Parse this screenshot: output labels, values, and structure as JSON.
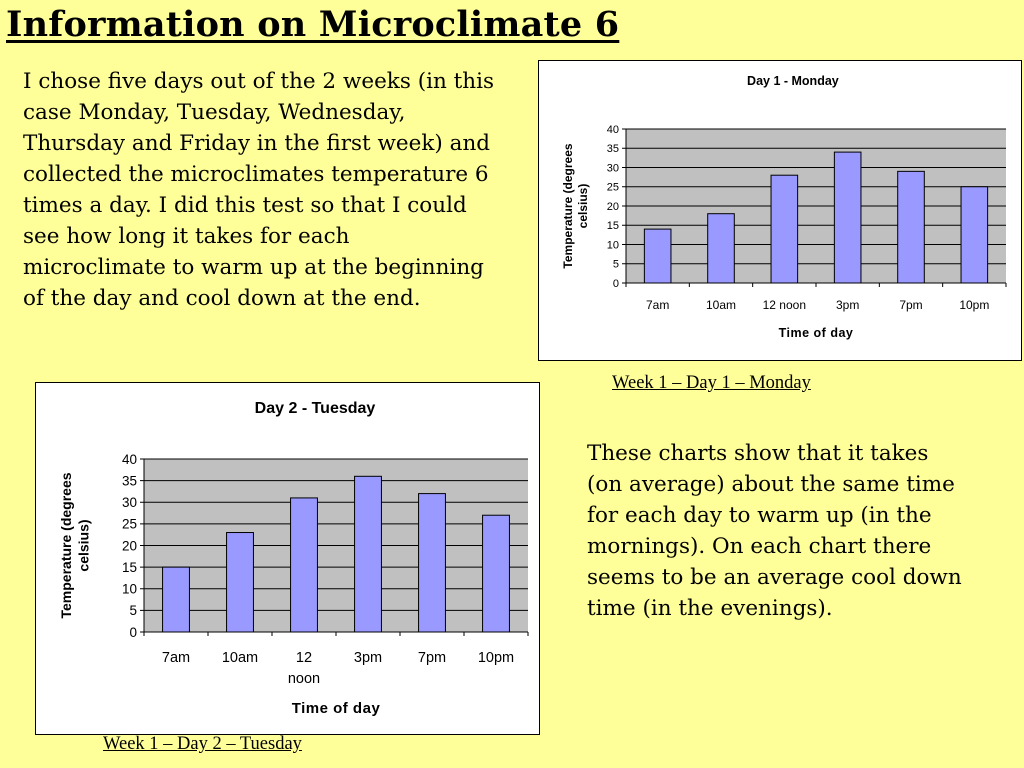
{
  "slide": {
    "title": "Information on Microclimate 6",
    "intro": "I chose five days out of the 2 weeks (in this case Monday, Tuesday, Wednesday, Thursday and Friday in the first week) and collected the microclimates temperature 6 times a day. I did this test so that I could see how long it takes for each microclimate to warm up at the beginning of the day and cool down at the end.",
    "summary": "These charts show that it takes (on average) about the same time for each day to warm up (in the mornings). On each chart there seems to be an average cool down time (in the evenings).",
    "caption1": "Week 1 – Day 1 – Monday",
    "caption2": "Week 1 – Day 2 – Tuesday"
  },
  "colors": {
    "background": "#ffff99",
    "plot_area": "#c0c0c0",
    "bar_fill": "#9999ff",
    "bar_stroke": "#000000",
    "gridline": "#000000"
  },
  "chart_data": [
    {
      "type": "bar",
      "title": "Day 1 - Monday",
      "xlabel": "Time of day",
      "ylabel": "Temperature (degrees celsius)",
      "ylabel_lines": [
        "Temperature (degrees",
        "celsius)"
      ],
      "categories": [
        "7am",
        "10am",
        "12 noon",
        "3pm",
        "7pm",
        "10pm"
      ],
      "values": [
        14,
        18,
        28,
        34,
        29,
        25
      ],
      "ylim": [
        0,
        40
      ],
      "yticks": [
        0,
        5,
        10,
        15,
        20,
        25,
        30,
        35,
        40
      ],
      "grid": true,
      "legend": "none"
    },
    {
      "type": "bar",
      "title": "Day 2 - Tuesday",
      "xlabel": "Time of day",
      "ylabel": "Temperature (degrees celsius)",
      "ylabel_lines": [
        "Temperature (degrees",
        "celsius)"
      ],
      "categories": [
        "7am",
        "10am",
        "12 noon",
        "3pm",
        "7pm",
        "10pm"
      ],
      "values": [
        15,
        23,
        31,
        36,
        32,
        27
      ],
      "ylim": [
        0,
        40
      ],
      "yticks": [
        0,
        5,
        10,
        15,
        20,
        25,
        30,
        35,
        40
      ],
      "grid": true,
      "legend": "none"
    }
  ]
}
